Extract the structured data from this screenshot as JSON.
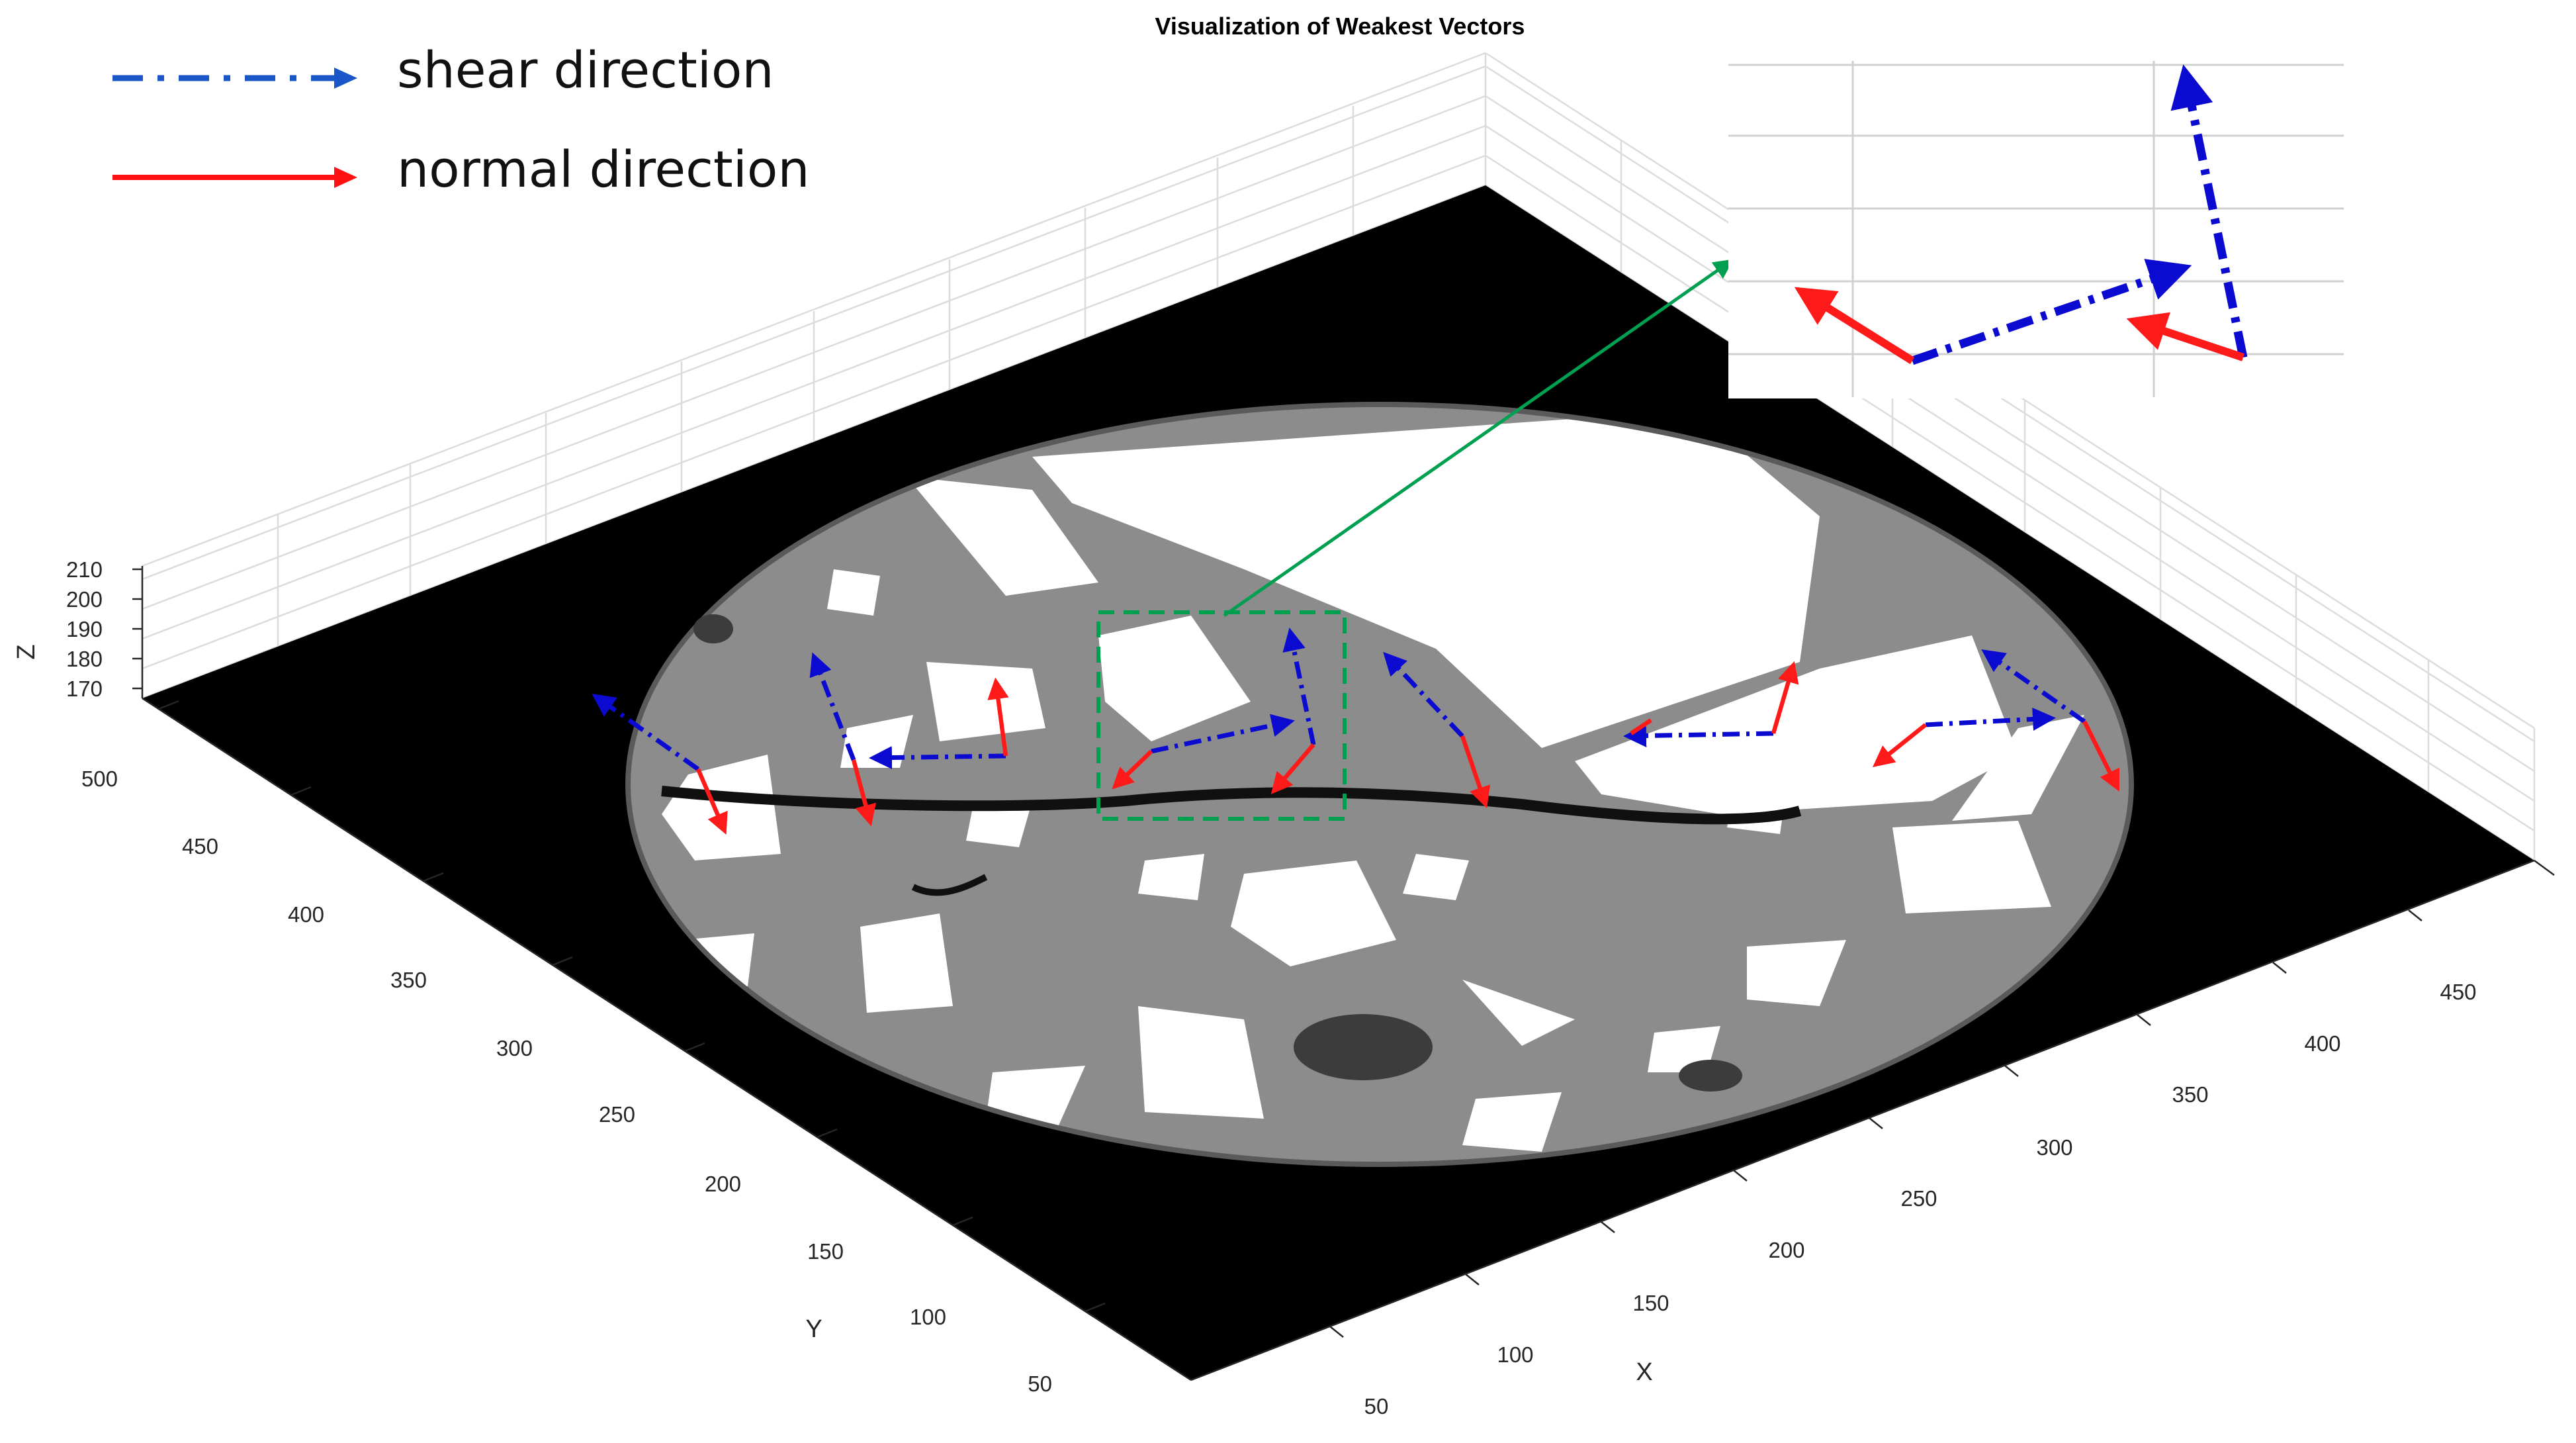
{
  "chart_data": {
    "type": "3d-surface-with-vectors",
    "title": "Visualization of Weakest Vectors",
    "x_axis": {
      "label": "X",
      "ticks": [
        "50",
        "100",
        "150",
        "200",
        "250",
        "300",
        "350",
        "400",
        "450"
      ]
    },
    "y_axis": {
      "label": "Y",
      "ticks": [
        "50",
        "100",
        "150",
        "200",
        "250",
        "300",
        "350",
        "400",
        "450",
        "500"
      ]
    },
    "z_axis": {
      "label": "Z",
      "ticks": [
        "170",
        "180",
        "190",
        "200",
        "210"
      ]
    },
    "legend": [
      {
        "name": "shear direction",
        "style": "dash-dot",
        "color": "#1a56c8"
      },
      {
        "name": "normal direction",
        "style": "solid",
        "color": "#ff1010"
      }
    ],
    "colors": {
      "shear": "#0a0ad0",
      "normal": "#ff1a1a",
      "callout": "#00a050",
      "specimen_matrix": "#8c8c8c",
      "specimen_aggregate": "#ffffff",
      "background_plane": "#000000"
    }
  }
}
